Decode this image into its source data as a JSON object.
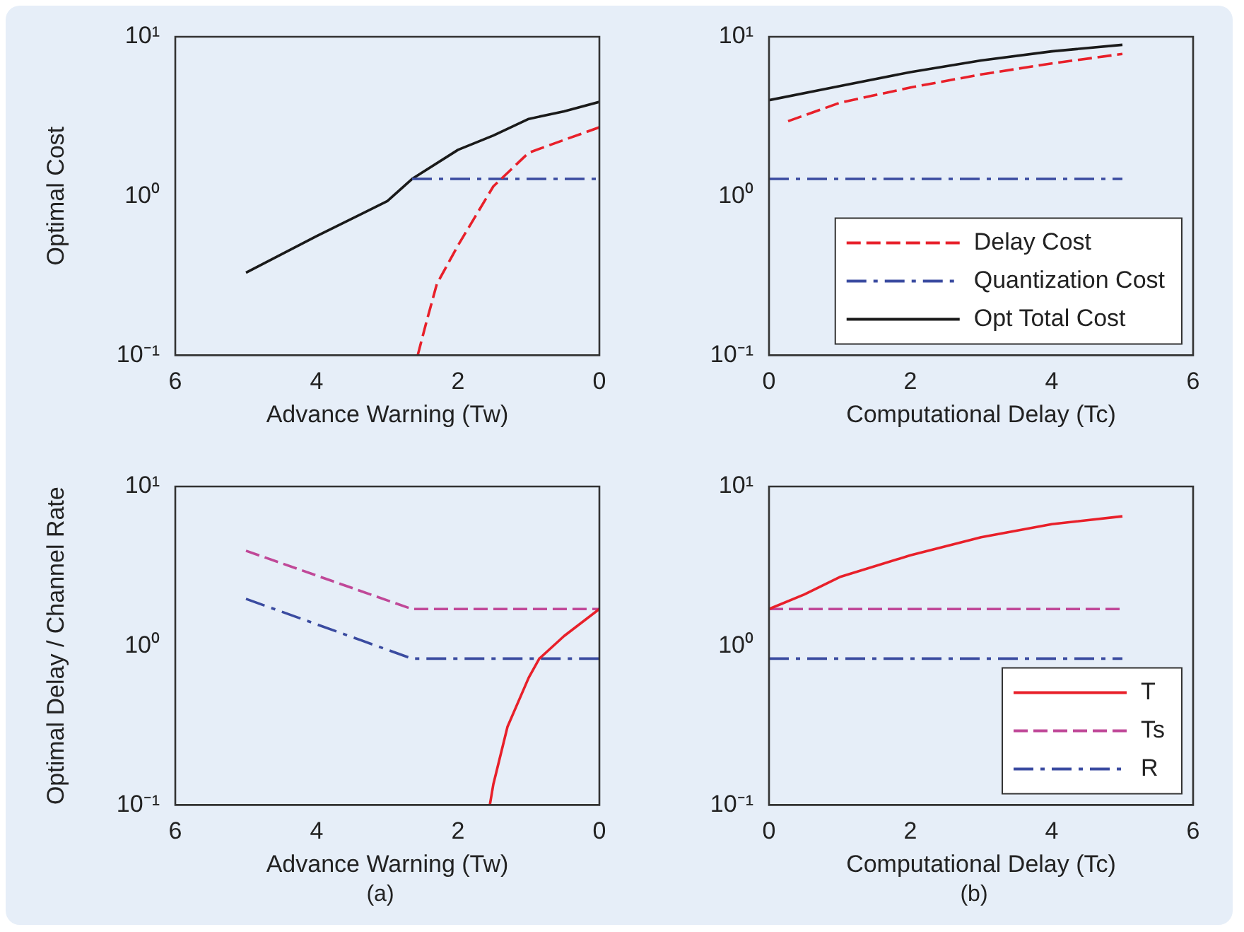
{
  "chart_data": [
    {
      "type": "line",
      "ylabel": "Optimal Cost",
      "xlabel": "Advance Warning (Tw)",
      "xlim": [
        6,
        0
      ],
      "xticks": [
        6,
        4,
        2,
        0
      ],
      "ylim": [
        0.1,
        10
      ],
      "yticks": [
        {
          "value": 0.1,
          "label": "10⁻¹"
        },
        {
          "value": 1,
          "label": "10⁰"
        },
        {
          "value": 10,
          "label": "10¹"
        }
      ],
      "log": "y",
      "grid": false,
      "legend": false,
      "marker": "none",
      "series": [
        {
          "color": "#e8202a",
          "line_style": "dashed",
          "x": [
            2.57,
            2.45,
            2.3,
            2,
            1.5,
            1,
            0.5,
            0
          ],
          "values": [
            0.1,
            0.16,
            0.28,
            0.49,
            1.15,
            1.87,
            2.25,
            2.7
          ]
        },
        {
          "color": "#3a4ba0",
          "line_style": "dashdot",
          "x": [
            2.65,
            0
          ],
          "values": [
            1.28,
            1.28
          ]
        },
        {
          "color": "#1a1a1a",
          "line_style": "solid",
          "x": [
            5,
            4,
            3,
            2.65,
            2,
            1.5,
            1,
            0.5,
            0
          ],
          "values": [
            0.33,
            0.56,
            0.93,
            1.28,
            1.95,
            2.4,
            3.05,
            3.4,
            3.9
          ]
        }
      ]
    },
    {
      "type": "line",
      "xlabel": "Computational Delay (Tc)",
      "xlim": [
        0,
        6
      ],
      "xticks": [
        0,
        2,
        4,
        6
      ],
      "ylim": [
        0.1,
        10
      ],
      "yticks": [
        {
          "value": 0.1,
          "label": "10⁻¹"
        },
        {
          "value": 1,
          "label": "10⁰"
        },
        {
          "value": 10,
          "label": "10¹"
        }
      ],
      "log": "y",
      "grid": false,
      "legend": "bottom right",
      "marker": "none",
      "series": [
        {
          "name": "Delay Cost",
          "color": "#e8202a",
          "line_style": "dashed",
          "x": [
            0.27,
            1,
            2,
            3,
            4,
            5
          ],
          "values": [
            2.95,
            3.85,
            4.8,
            5.8,
            6.8,
            7.8
          ]
        },
        {
          "name": "Quantization Cost",
          "color": "#3a4ba0",
          "line_style": "dashdot",
          "x": [
            0,
            5
          ],
          "values": [
            1.28,
            1.28
          ]
        },
        {
          "name": "Opt Total Cost",
          "color": "#1a1a1a",
          "line_style": "solid",
          "x": [
            0,
            1,
            2,
            3,
            4,
            5
          ],
          "values": [
            4.0,
            4.9,
            6.0,
            7.1,
            8.1,
            8.9
          ]
        }
      ]
    },
    {
      "type": "line",
      "ylabel": "Optimal Delay / Channel Rate",
      "xlabel": "Advance Warning (Tw)",
      "annotations": [
        "(a)"
      ],
      "xlim": [
        6,
        0
      ],
      "xticks": [
        6,
        4,
        2,
        0
      ],
      "ylim": [
        0.1,
        10
      ],
      "yticks": [
        {
          "value": 0.1,
          "label": "10⁻¹"
        },
        {
          "value": 1,
          "label": "10⁰"
        },
        {
          "value": 10,
          "label": "10¹"
        }
      ],
      "log": "y",
      "grid": false,
      "legend": false,
      "marker": "none",
      "series": [
        {
          "color": "#e8202a",
          "line_style": "solid",
          "x": [
            1.55,
            1.5,
            1.3,
            1,
            0.85,
            0.5,
            0
          ],
          "values": [
            0.1,
            0.135,
            0.31,
            0.63,
            0.83,
            1.15,
            1.7
          ]
        },
        {
          "color": "#c04898",
          "line_style": "dashed",
          "x": [
            5,
            2.65,
            0
          ],
          "values": [
            3.95,
            1.7,
            1.7
          ]
        },
        {
          "color": "#3a4ba0",
          "line_style": "dashdot",
          "x": [
            5,
            2.65,
            0
          ],
          "values": [
            1.97,
            0.83,
            0.83
          ]
        }
      ]
    },
    {
      "type": "line",
      "xlabel": "Computational Delay (Tc)",
      "annotations": [
        "(b)"
      ],
      "xlim": [
        0,
        6
      ],
      "xticks": [
        0,
        2,
        4,
        6
      ],
      "ylim": [
        0.1,
        10
      ],
      "yticks": [
        {
          "value": 0.1,
          "label": "10⁻¹"
        },
        {
          "value": 1,
          "label": "10⁰"
        },
        {
          "value": 10,
          "label": "10¹"
        }
      ],
      "log": "y",
      "grid": false,
      "legend": "bottom right",
      "marker": "none",
      "series": [
        {
          "name": "T",
          "color": "#e8202a",
          "line_style": "solid",
          "x": [
            0,
            0.5,
            1,
            2,
            3,
            4,
            5
          ],
          "values": [
            1.7,
            2.1,
            2.7,
            3.7,
            4.8,
            5.8,
            6.5
          ]
        },
        {
          "name": "Ts",
          "color": "#c04898",
          "line_style": "dashed",
          "x": [
            0,
            5
          ],
          "values": [
            1.7,
            1.7
          ]
        },
        {
          "name": "R",
          "color": "#3a4ba0",
          "line_style": "dashdot",
          "x": [
            0,
            5
          ],
          "values": [
            0.83,
            0.83
          ]
        }
      ]
    }
  ]
}
